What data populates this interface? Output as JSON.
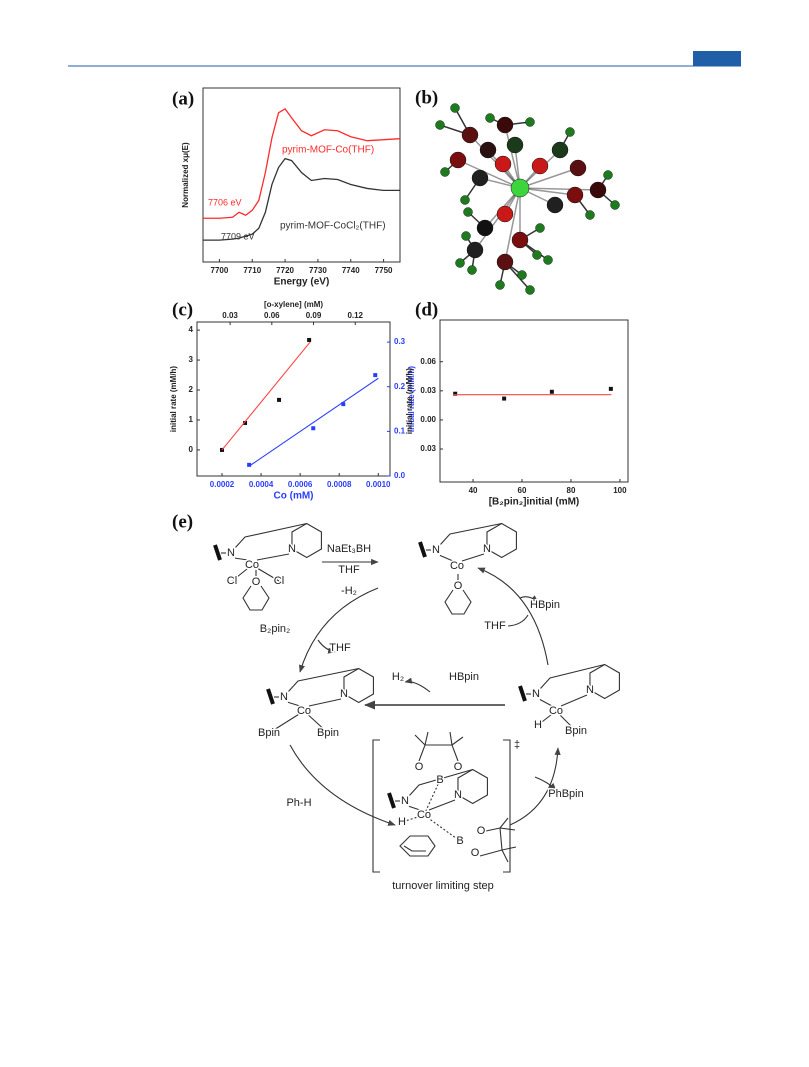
{
  "chart_data": [
    {
      "type": "line",
      "panel_label": "(a)",
      "x_label": "Energy (eV)",
      "y_label": "Normalized xμ(E)",
      "x": [
        7695,
        7700,
        7704,
        7706,
        7708,
        7710,
        7712,
        7714,
        7716,
        7718,
        7720,
        7722,
        7725,
        7728,
        7732,
        7736,
        7740,
        7745,
        7750,
        7755
      ],
      "series": [
        {
          "name": "pyrim-MOF-Co(THF)",
          "color": "#ff2a2a",
          "values": [
            0.44,
            0.44,
            0.45,
            0.5,
            0.47,
            0.52,
            0.62,
            0.9,
            1.25,
            1.5,
            1.54,
            1.45,
            1.32,
            1.27,
            1.33,
            1.32,
            1.26,
            1.22,
            1.23,
            1.24
          ]
        },
        {
          "name": "pyrim-MOF-CoCl₂(THF)",
          "color": "#333333",
          "values": [
            0.22,
            0.22,
            0.23,
            0.24,
            0.26,
            0.28,
            0.34,
            0.5,
            0.78,
            0.95,
            1.04,
            1.02,
            0.9,
            0.82,
            0.84,
            0.83,
            0.78,
            0.74,
            0.72,
            0.72
          ]
        }
      ],
      "annotations": [
        {
          "text": "7706 eV",
          "color": "#ff2a2a"
        },
        {
          "text": "7709 eV",
          "color": "#333333"
        }
      ],
      "xlim": [
        7695,
        7755
      ],
      "ylim": [
        0,
        1.75
      ],
      "xticks": [
        7700,
        7710,
        7720,
        7730,
        7740,
        7750
      ]
    },
    {
      "type": "scatter",
      "panel_label": "(c)",
      "x_label": "Co (mM)",
      "x2_label": "[o-xylene] (mM)",
      "y_label": "initial rate (mM/h)",
      "y2_label": "initial rate (mM/h)",
      "x_color": "#2a3cff",
      "y2_color": "#2a3cff",
      "xlim": [
        7.2e-05,
        0.00106
      ],
      "xticks": [
        0.0002,
        0.0004,
        0.0006,
        0.0008,
        {
          "value": 0.001,
          "label": "0.0010"
        }
      ],
      "x2lim": [
        0.0062,
        0.145
      ],
      "x2ticks": [
        0.03,
        0.06,
        0.09,
        0.12
      ],
      "ylim": [
        -0.87,
        4.27
      ],
      "yticks": [
        0,
        1,
        2,
        3,
        4
      ],
      "y2lim": [
        0,
        0.345
      ],
      "y2ticks": [
        {
          "value": 0,
          "label": "0.0"
        },
        0.1,
        0.2,
        0.3
      ],
      "series": [
        {
          "mode": "markers",
          "color": "#111111",
          "x": [
            0.0002,
            0.000318,
            0.000492,
            0.000646
          ],
          "values": [
            0,
            0.9,
            1.67,
            3.67
          ]
        },
        {
          "mode": "line",
          "color": "#ff4444",
          "x": [
            0.0002,
            0.000651
          ],
          "values": [
            0,
            3.6
          ]
        },
        {
          "mode": "markers",
          "color": "#2a3cff",
          "axis": "y2",
          "xaxis": "x2",
          "x": [
            0.0437,
            0.0898,
            0.1114,
            0.1344
          ],
          "values": [
            0.025,
            0.107,
            0.161,
            0.226
          ]
        },
        {
          "mode": "line",
          "color": "#2a3cff",
          "axis": "y2",
          "xaxis": "x2",
          "x": [
            0.0437,
            0.1366
          ],
          "values": [
            0.022,
            0.219
          ]
        }
      ]
    },
    {
      "type": "scatter",
      "panel_label": "(d)",
      "x_label": "[B₂pin₂]initial (mM)",
      "y_label": "initial rate (mM/h)",
      "xlim": [
        26.5,
        103.3
      ],
      "xticks": [
        40,
        60,
        80,
        100
      ],
      "ylim": [
        -0.064,
        0.103
      ],
      "yticks": [
        0.06,
        0.03,
        {
          "value": 0,
          "label": "0.00"
        },
        {
          "value": -0.03,
          "label": "0.03"
        }
      ],
      "series": [
        {
          "mode": "markers",
          "color": "#111111",
          "x": [
            32.7,
            52.7,
            72.2,
            96.3
          ],
          "values": [
            0.027,
            0.022,
            0.029,
            0.032
          ]
        },
        {
          "mode": "line",
          "color": "#ff4444",
          "x": [
            32,
            96.5
          ],
          "values": [
            0.026,
            0.026
          ]
        }
      ]
    }
  ],
  "figure": {
    "panel_b": "(b)",
    "panel_e": "(e)"
  },
  "scheme": {
    "reagents": [
      "NaEt₃BH",
      "THF",
      "-H₂",
      "HBpin",
      "THF",
      "B₂pin₂",
      "THF",
      "H₂",
      "HBpin",
      "‡",
      "Ph-H",
      "PhBpin",
      "turnover limiting step"
    ],
    "atoms": [
      "N",
      "N",
      "Co",
      "Cl",
      "Cl",
      "O",
      "N",
      "N",
      "Co",
      "O",
      "N",
      "N",
      "Co",
      "Bpin",
      "Bpin",
      "N",
      "N",
      "Co",
      "H",
      "Bpin",
      "O",
      "O",
      "B",
      "N",
      "N",
      "Co",
      "H",
      "B",
      "O",
      "O"
    ]
  }
}
